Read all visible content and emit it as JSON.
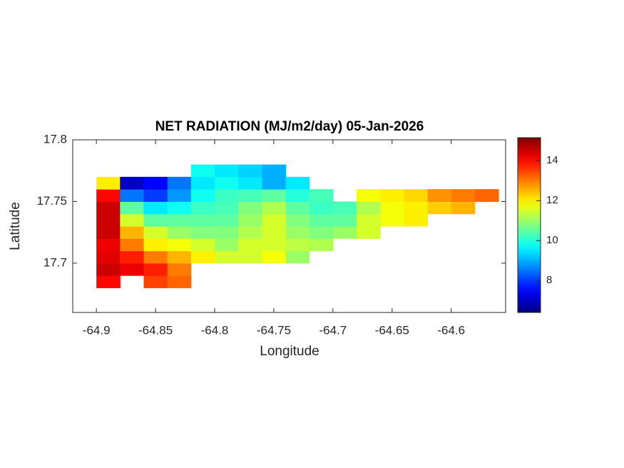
{
  "chart_data": {
    "type": "heatmap",
    "title": "NET RADIATION (MJ/m2/day) 05-Jan-2026",
    "x_label": "Longitude",
    "y_label": "Latitude",
    "xlim": [
      -64.92,
      -64.554
    ],
    "ylim": [
      17.66,
      17.8
    ],
    "xticks": [
      -64.9,
      -64.85,
      -64.8,
      -64.75,
      -64.7,
      -64.65,
      -64.6
    ],
    "yticks": [
      17.7,
      17.75,
      17.8
    ],
    "clim": [
      6.4,
      15.15
    ],
    "colorbar_ticks": [
      8,
      10,
      12,
      14
    ],
    "colormap": "jet",
    "x": [
      -64.89,
      -64.87,
      -64.85,
      -64.83,
      -64.81,
      -64.79,
      -64.77,
      -64.75,
      -64.73,
      -64.71,
      -64.69,
      -64.67,
      -64.65,
      -64.63,
      -64.61,
      -64.59,
      -64.57
    ],
    "y": [
      17.685,
      17.695,
      17.705,
      17.715,
      17.725,
      17.735,
      17.745,
      17.755,
      17.765,
      17.775
    ],
    "z": [
      [
        14,
        null,
        13.5,
        13.2,
        null,
        null,
        null,
        null,
        null,
        null,
        null,
        null,
        null,
        null,
        null,
        null,
        null
      ],
      [
        14.5,
        14.2,
        13.8,
        13,
        null,
        null,
        null,
        null,
        null,
        null,
        null,
        null,
        null,
        null,
        null,
        null,
        null
      ],
      [
        14.3,
        13.8,
        13,
        12.5,
        12,
        11.5,
        11.5,
        11.8,
        11,
        null,
        null,
        null,
        null,
        null,
        null,
        null,
        null
      ],
      [
        14.2,
        13,
        12,
        11.8,
        11.5,
        11,
        11.5,
        11.5,
        11.3,
        11.2,
        null,
        null,
        null,
        null,
        null,
        null,
        null
      ],
      [
        14.5,
        12.5,
        11.5,
        11,
        10.8,
        10.8,
        11.2,
        11.5,
        11,
        10.8,
        11,
        11.5,
        null,
        null,
        null,
        null,
        null
      ],
      [
        14.5,
        11.5,
        10.5,
        10.5,
        10.5,
        10.5,
        11,
        11.5,
        10.8,
        10.5,
        10.5,
        11.5,
        11.8,
        12,
        null,
        null,
        null
      ],
      [
        14.5,
        10.5,
        9.5,
        9.8,
        10.2,
        10.3,
        10.8,
        11.2,
        10.5,
        10.2,
        10.3,
        11.2,
        11.8,
        12,
        12.3,
        12.5,
        null
      ],
      [
        14,
        8.5,
        8,
        8.8,
        9.8,
        10.2,
        10.3,
        10.5,
        10,
        10.3,
        null,
        11.8,
        12,
        12.2,
        12.8,
        13,
        13.2
      ],
      [
        12,
        7,
        7.5,
        8.5,
        9.5,
        9.8,
        9.5,
        9,
        9.5,
        null,
        null,
        null,
        null,
        null,
        null,
        null,
        null
      ],
      [
        null,
        null,
        null,
        null,
        9.8,
        9.5,
        9.3,
        9,
        null,
        null,
        null,
        null,
        null,
        null,
        null,
        null,
        null
      ]
    ]
  }
}
